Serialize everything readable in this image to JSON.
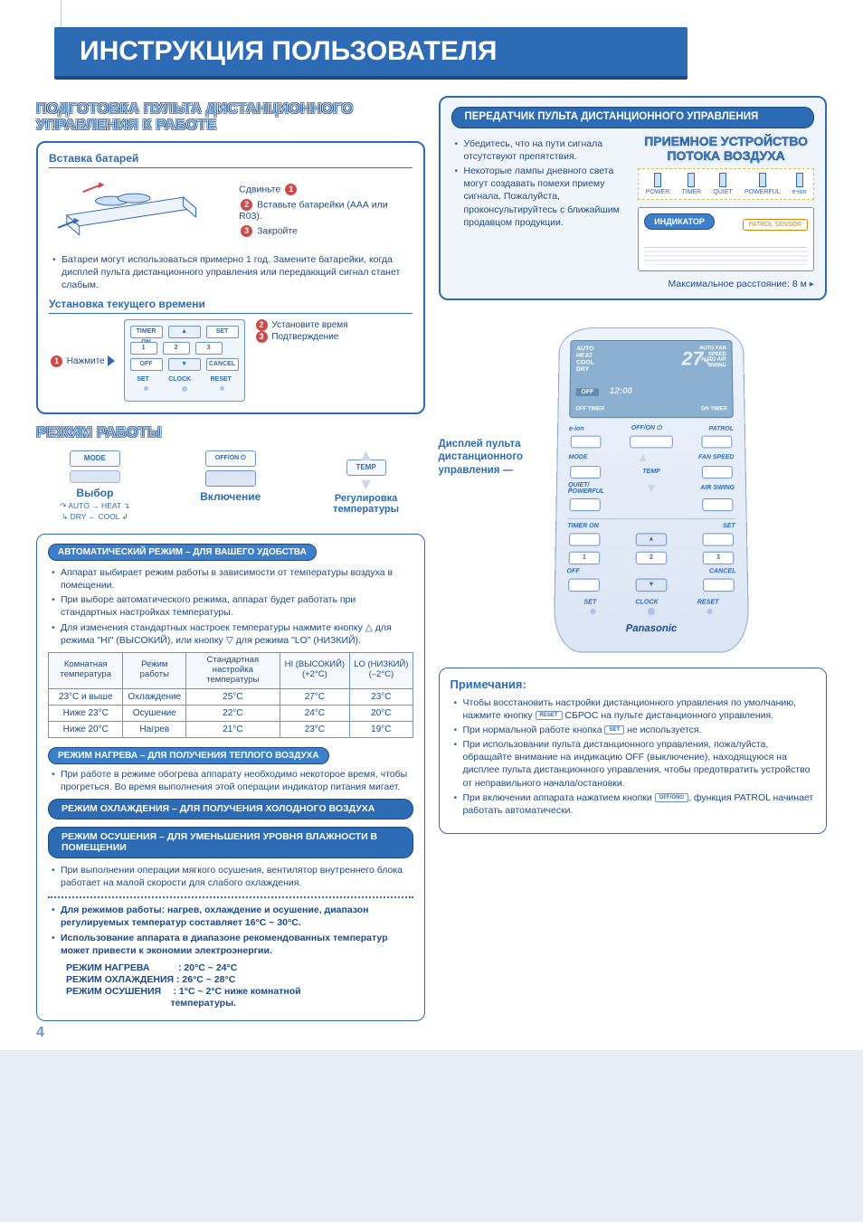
{
  "page": {
    "title": "ИНСТРУКЦИЯ ПОЛЬЗОВАТЕЛЯ",
    "page_number": "4",
    "colors": {
      "primary": "#2d6bb5",
      "dark": "#1a4a8a",
      "pale": "#f0f5fc",
      "accent_red": "#d04848",
      "accent_mark": "#2d6bb5"
    },
    "fonts": {
      "body_pt": 11,
      "title_pt": 30
    }
  },
  "left": {
    "prep_heading": "ПОДГОТОВКА ПУЛЬТА ДИСТАНЦИОННОГО УПРАВЛЕНИЯ К РАБОТЕ",
    "battery": {
      "heading": "Вставка батарей",
      "step1": "Сдвиньте",
      "step2": "Вставьте батарейки (ААА или R03).",
      "step3": "Закройте",
      "note": "Батареи могут использоваться примерно 1 год. Замените батарейки, когда дисплей пульта дистанционного управления или передающий сигнал станет слабым."
    },
    "clock": {
      "heading": "Установка текущего времени",
      "s1": "Нажмите",
      "s2": "Установите время",
      "s3": "Подтверждение",
      "keys": {
        "timer_on": "TIMER ON",
        "set": "SET",
        "off": "OFF",
        "cancel": "CANCEL",
        "k1": "1",
        "k2": "2",
        "k3": "3",
        "set2": "SET",
        "clock": "CLOCK",
        "reset": "RESET"
      }
    },
    "mode_heading": "РЕЖИМ РАБОТЫ",
    "mode_cards": {
      "mode": {
        "btn": "MODE",
        "caption": "Выбор",
        "cycle1": "AUTO → HEAT",
        "cycle2": "DRY ← COOL"
      },
      "power": {
        "btn": "OFF/ON ⏻",
        "caption": "Включение"
      },
      "temp": {
        "btn": "TEMP",
        "caption": "Регулировка температуры"
      }
    },
    "auto": {
      "pill": "АВТОМАТИЧЕСКИЙ РЕЖИМ – ДЛЯ ВАШЕГО УДОБСТВА",
      "b1": "Аппарат выбирает режим работы в зависимости от температуры воздуха в помещении.",
      "b2": "При выборе автоматического режима, аппарат будет работать при стандартных настройках температуры.",
      "b3": "Для изменения стандартных настроек температуры нажмите кнопку △ для режима \"HI\" (ВЫСОКИЙ), или кнопку ▽ для режима \"LO\" (НИЗКИЙ)."
    },
    "table": {
      "headers": [
        "Комнатная температура",
        "Режим работы",
        "Стандартная настройка температуры",
        "HI (ВЫСОКИЙ) (+2°С)",
        "LO (НИЗКИЙ) (–2°С)"
      ],
      "rows": [
        [
          "23°С и выше",
          "Охлаждение",
          "25°С",
          "27°С",
          "23°С"
        ],
        [
          "Ниже 23°С",
          "Осушение",
          "22°С",
          "24°С",
          "20°С"
        ],
        [
          "Ниже 20°С",
          "Нагрев",
          "21°С",
          "23°С",
          "19°С"
        ]
      ]
    },
    "heat_pill": "РЕЖИМ НАГРЕВА – ДЛЯ ПОЛУЧЕНИЯ ТЕПЛОГО ВОЗДУХА",
    "heat_note": "При работе в режиме обогрева аппарату необходимо некоторое время, чтобы прогреться. Во время выполнения этой операции индикатор питания мигает.",
    "cool_pill": "РЕЖИМ ОХЛАЖДЕНИЯ – ДЛЯ ПОЛУЧЕНИЯ ХОЛОДНОГО ВОЗДУХА",
    "dry_pill": "РЕЖИМ ОСУШЕНИЯ – ДЛЯ УМЕНЬШЕНИЯ УРОВНЯ ВЛАЖНОСТИ В ПОМЕЩЕНИИ",
    "dry_note": "При выполнении операции мягкого осушения, вентилятор внутреннего блока работает на малой скорости для слабого охлаждения.",
    "rec_b1": "Для режимов работы: нагрев, охлаждение и осушение, диапазон регулируемых температур составляет 16°С ~ 30°С.",
    "rec_b2": "Использование аппарата в диапазоне рекомендованных температур может привести к экономии электроэнергии.",
    "rec_lines": {
      "l1": "РЕЖИМ НАГРЕВА   : 20°С ~ 24°С",
      "l2": "РЕЖИМ ОХЛАЖДЕНИЯ : 26°С ~ 28°С",
      "l3a": "РЕЖИМ ОСУШЕНИЯ  : 1°С ~ 2°С ниже комнатной",
      "l3b": "           температуры."
    }
  },
  "right": {
    "transmitter_pill": "ПЕРЕДАТЧИК ПУЛЬТА ДИСТАНЦИОННОГО УПРАВЛЕНИЯ",
    "receiver_label": "ПРИЕМНОЕ УСТРОЙСТВО ПОТОКА ВОЗДУХА",
    "indicator_label": "ИНДИКАТОР",
    "patrol": "PATROL SENSOR",
    "indicators": [
      "POWER",
      "TIMER",
      "QUIET",
      "POWERFUL",
      "e-ion"
    ],
    "bullets": [
      "Убедитесь, что на пути сигнала отсутствуют препятствия.",
      "Некоторые лампы дневного света могут создавать помехи приему сигнала. Пожалуйста, проконсультируйтесь с ближайшим продавцом продукции."
    ],
    "max_distance": "Максимальное расстояние: 8 м",
    "display_label": "Дисплей пульта дистанционного управления",
    "remote": {
      "lcd_modes": "AUTO\nHEAT\nCOOL\nDRY",
      "lcd_big": "27",
      "lcd_c": "°C",
      "lcd_right": "AUTO FAN\nSPEED\nAUTO AIR\nSWING",
      "lcd_off": "OFF",
      "lcd_time": "12:00",
      "lcd_timer_off": "OFF TIMER",
      "lcd_timer_on": "ON TIMER",
      "b_eion": "e-ion",
      "b_offon": "OFF/ON ⏻",
      "b_patrol": "PATROL",
      "b_mode": "MODE",
      "b_fan": "FAN SPEED",
      "b_quiet": "QUIET/ POWERFUL",
      "b_temp": "TEMP",
      "b_air": "AIR SWING",
      "b_timeron": "TIMER ON",
      "b_set": "SET",
      "b_1": "1",
      "b_2": "2",
      "b_3": "3",
      "b_off": "OFF",
      "b_cancel": "CANCEL",
      "b_set2": "SET",
      "b_clock": "CLOCK",
      "b_reset": "RESET",
      "brand": "Panasonic"
    },
    "notes_h": "Примечания:",
    "n1a": "Чтобы восстановить настройки дистанционного управления по умолчанию, нажмите кнопку ",
    "n1_btn": "RESET",
    "n1b": " СБРОС на пульте дистанционного управления.",
    "n2a": "При нормальной работе кнопка ",
    "n2_btn": "SET",
    "n2b": " не используется.",
    "n3": "При использовании пульта дистанционного управления, пожалуйста, обращайте внимание на индикацию OFF (выключение), находящуюся на дисплее пульта дистанционного управления, чтобы предотвратить устройство от неправильного начала/остановки.",
    "n4a": "При включении аппарата нажатием кнопки ",
    "n4_btn": "OFF/ON⏻",
    "n4b": ", функция PATROL начинает работать автоматически."
  }
}
